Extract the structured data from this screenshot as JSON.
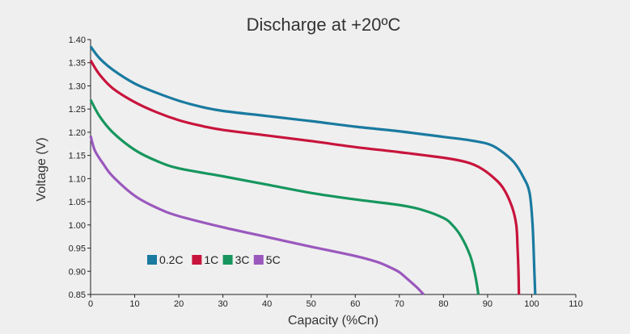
{
  "chart_data": {
    "type": "line",
    "title": "Discharge at +20ºC",
    "xlabel": "Capacity (%Cn)",
    "ylabel": "Voltage (V)",
    "xlim": [
      0,
      110
    ],
    "ylim": [
      0.85,
      1.4
    ],
    "xticks": [
      "0",
      "10",
      "20",
      "30",
      "40",
      "50",
      "60",
      "70",
      "80",
      "90",
      "100",
      "110"
    ],
    "yticks": [
      "0.85",
      "0.90",
      "0.95",
      "1.00",
      "1.05",
      "1.10",
      "1.15",
      "1.20",
      "1.25",
      "1.30",
      "1.35",
      "1.40"
    ],
    "grid": false,
    "legend_position": "bottom-left",
    "series": [
      {
        "name": "0.2C",
        "color": "#1a7aa0",
        "points": [
          [
            0,
            1.385
          ],
          [
            2,
            1.36
          ],
          [
            5,
            1.335
          ],
          [
            10,
            1.305
          ],
          [
            15,
            1.285
          ],
          [
            20,
            1.268
          ],
          [
            25,
            1.255
          ],
          [
            30,
            1.246
          ],
          [
            40,
            1.235
          ],
          [
            50,
            1.224
          ],
          [
            60,
            1.212
          ],
          [
            70,
            1.202
          ],
          [
            80,
            1.19
          ],
          [
            85,
            1.184
          ],
          [
            90,
            1.175
          ],
          [
            93,
            1.16
          ],
          [
            96,
            1.135
          ],
          [
            98,
            1.105
          ],
          [
            99.5,
            1.07
          ],
          [
            100.2,
            1.0
          ],
          [
            100.6,
            0.9
          ],
          [
            100.8,
            0.85
          ]
        ]
      },
      {
        "name": "1C",
        "color": "#c8143c",
        "points": [
          [
            0,
            1.355
          ],
          [
            2,
            1.325
          ],
          [
            5,
            1.295
          ],
          [
            10,
            1.265
          ],
          [
            15,
            1.243
          ],
          [
            20,
            1.226
          ],
          [
            25,
            1.214
          ],
          [
            30,
            1.205
          ],
          [
            40,
            1.193
          ],
          [
            50,
            1.181
          ],
          [
            60,
            1.168
          ],
          [
            70,
            1.157
          ],
          [
            80,
            1.145
          ],
          [
            85,
            1.136
          ],
          [
            88,
            1.125
          ],
          [
            91,
            1.105
          ],
          [
            93.5,
            1.08
          ],
          [
            95.5,
            1.04
          ],
          [
            96.5,
            1.0
          ],
          [
            96.8,
            0.95
          ],
          [
            97,
            0.9
          ],
          [
            97.1,
            0.85
          ]
        ]
      },
      {
        "name": "3C",
        "color": "#16965e",
        "points": [
          [
            0,
            1.27
          ],
          [
            2,
            1.235
          ],
          [
            5,
            1.2
          ],
          [
            10,
            1.162
          ],
          [
            15,
            1.138
          ],
          [
            20,
            1.122
          ],
          [
            30,
            1.105
          ],
          [
            40,
            1.087
          ],
          [
            50,
            1.069
          ],
          [
            60,
            1.055
          ],
          [
            70,
            1.043
          ],
          [
            75,
            1.033
          ],
          [
            80,
            1.015
          ],
          [
            82,
            1.0
          ],
          [
            84,
            0.975
          ],
          [
            86,
            0.935
          ],
          [
            87,
            0.9
          ],
          [
            87.6,
            0.87
          ],
          [
            87.9,
            0.85
          ]
        ]
      },
      {
        "name": "5C",
        "color": "#9a58bd",
        "points": [
          [
            0,
            1.192
          ],
          [
            1,
            1.16
          ],
          [
            3,
            1.13
          ],
          [
            5,
            1.105
          ],
          [
            10,
            1.063
          ],
          [
            15,
            1.037
          ],
          [
            20,
            1.019
          ],
          [
            30,
            0.995
          ],
          [
            40,
            0.974
          ],
          [
            50,
            0.953
          ],
          [
            60,
            0.933
          ],
          [
            65,
            0.92
          ],
          [
            68,
            0.908
          ],
          [
            70,
            0.898
          ],
          [
            72,
            0.882
          ],
          [
            74,
            0.865
          ],
          [
            75.5,
            0.85
          ]
        ]
      }
    ]
  }
}
